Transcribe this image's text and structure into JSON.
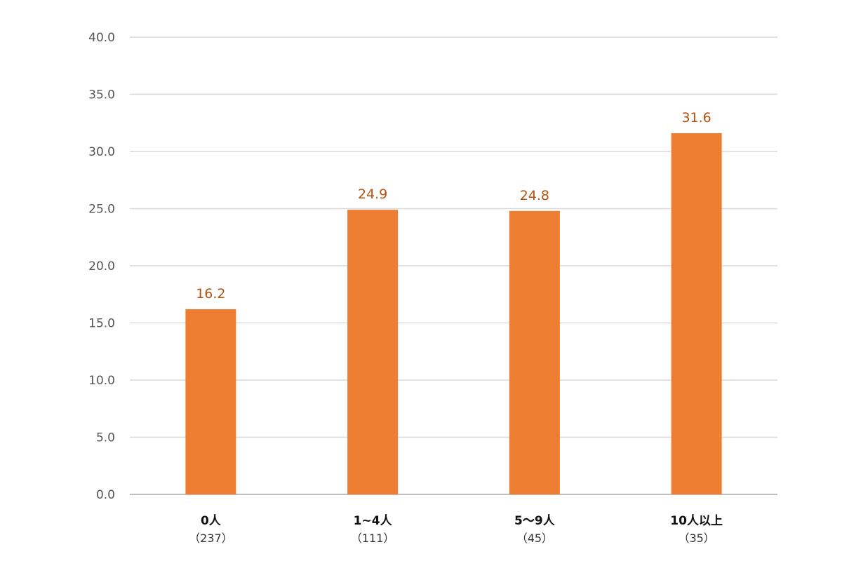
{
  "chart_data": {
    "type": "bar",
    "categories": [
      "0人",
      "1~4人",
      "5～9人",
      "10人以上"
    ],
    "category_counts": [
      "（237）",
      "（111）",
      "（45）",
      "（35）"
    ],
    "values": [
      16.2,
      24.9,
      24.8,
      31.6
    ],
    "value_labels": [
      "16.2",
      "24.9",
      "24.8",
      "31.6"
    ],
    "ylim": [
      0,
      40
    ],
    "yticks": [
      "0.0",
      "5.0",
      "10.0",
      "15.0",
      "20.0",
      "25.0",
      "30.0",
      "35.0",
      "40.0"
    ],
    "grid": true,
    "legend": "none",
    "colors": {
      "bar": "#ed7d31",
      "data_label": "#b5520f",
      "grid": "#d9d9d9",
      "axis": "#bfbfbf"
    }
  }
}
